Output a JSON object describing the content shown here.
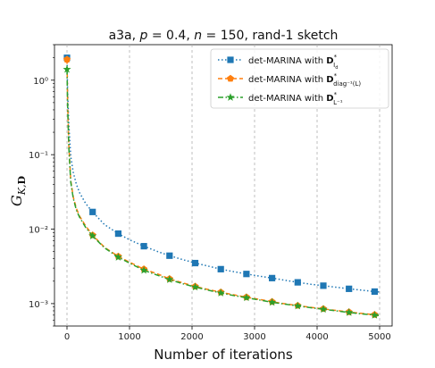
{
  "chart_data": {
    "type": "line",
    "title": "a3a, p = 0.4, n = 150, rand-1 sketch",
    "xlabel": "Number of iterations",
    "ylabel": "G_{K,D}",
    "xlim": [
      -200,
      5200
    ],
    "ylim": [
      0.0005,
      3.0
    ],
    "yscale": "log",
    "x_ticks": [
      0,
      1000,
      2000,
      3000,
      4000,
      5000
    ],
    "x_tick_labels": [
      "0",
      "1000",
      "2000",
      "3000",
      "4000",
      "5000"
    ],
    "y_ticks": [
      0.001,
      0.01,
      0.1,
      1
    ],
    "y_tick_labels": [
      "10⁻³",
      "10⁻²",
      "10⁻¹",
      "10⁰"
    ],
    "grid": "vertical dashed",
    "legend_position": "top-right",
    "series": [
      {
        "name": "det-MARINA with D*_{I_d}",
        "name_text": "det-MARINA with ",
        "name_sub": "I",
        "name_subsub": "d",
        "color": "#1f77b4",
        "linestyle": "dotted",
        "marker": "square",
        "x": [
          0,
          10,
          30,
          60,
          100,
          150,
          200,
          300,
          410,
          600,
          820,
          1000,
          1230,
          1450,
          1640,
          1850,
          2050,
          2250,
          2460,
          2650,
          2870,
          3100,
          3280,
          3500,
          3690,
          3900,
          4100,
          4300,
          4510,
          4700,
          4920,
          5000
        ],
        "y": [
          2.0,
          0.7,
          0.25,
          0.095,
          0.058,
          0.04,
          0.031,
          0.022,
          0.017,
          0.0115,
          0.0087,
          0.0072,
          0.0059,
          0.005,
          0.0044,
          0.0039,
          0.0035,
          0.0032,
          0.0029,
          0.0027,
          0.0025,
          0.00232,
          0.0022,
          0.00205,
          0.00193,
          0.00182,
          0.00174,
          0.00166,
          0.00158,
          0.00152,
          0.00145,
          0.00143
        ]
      },
      {
        "name": "det-MARINA with D*_{diag^{-1}(L)}",
        "name_text": "det-MARINA with ",
        "name_sub": "diag⁻¹(L)",
        "name_subsub": "",
        "color": "#ff7f0e",
        "linestyle": "dashed",
        "marker": "pentagon",
        "x": [
          0,
          10,
          30,
          60,
          100,
          150,
          200,
          300,
          410,
          600,
          820,
          1000,
          1230,
          1450,
          1640,
          1850,
          2050,
          2250,
          2460,
          2650,
          2870,
          3100,
          3280,
          3500,
          3690,
          3900,
          4100,
          4300,
          4510,
          4700,
          4920,
          5000
        ],
        "y": [
          1.9,
          0.5,
          0.13,
          0.045,
          0.027,
          0.019,
          0.015,
          0.011,
          0.0083,
          0.0057,
          0.0043,
          0.0036,
          0.0029,
          0.0025,
          0.00215,
          0.0019,
          0.0017,
          0.00155,
          0.00142,
          0.00132,
          0.00122,
          0.00113,
          0.00106,
          0.00099,
          0.00094,
          0.00089,
          0.00085,
          0.00081,
          0.00077,
          0.00074,
          0.00071,
          0.0007
        ]
      },
      {
        "name": "det-MARINA with D*_{L^{-1}}",
        "name_text": "det-MARINA with ",
        "name_sub": "L⁻¹",
        "name_subsub": "",
        "color": "#2ca02c",
        "linestyle": "dashdot",
        "marker": "star",
        "x": [
          0,
          10,
          30,
          60,
          100,
          150,
          200,
          300,
          410,
          600,
          820,
          1000,
          1230,
          1450,
          1640,
          1850,
          2050,
          2250,
          2460,
          2650,
          2870,
          3100,
          3280,
          3500,
          3690,
          3900,
          4100,
          4300,
          4510,
          4700,
          4920,
          5000
        ],
        "y": [
          1.4,
          0.45,
          0.12,
          0.043,
          0.026,
          0.018,
          0.0145,
          0.0105,
          0.0081,
          0.0056,
          0.0042,
          0.0035,
          0.0028,
          0.0024,
          0.0021,
          0.00185,
          0.00167,
          0.00152,
          0.00139,
          0.00129,
          0.0012,
          0.00111,
          0.00104,
          0.00098,
          0.00093,
          0.00088,
          0.00084,
          0.0008,
          0.00076,
          0.00073,
          0.0007,
          0.00069
        ]
      }
    ],
    "marker_indices": [
      0,
      8,
      10,
      12,
      14,
      16,
      18,
      20,
      22,
      24,
      26,
      28,
      30
    ]
  }
}
